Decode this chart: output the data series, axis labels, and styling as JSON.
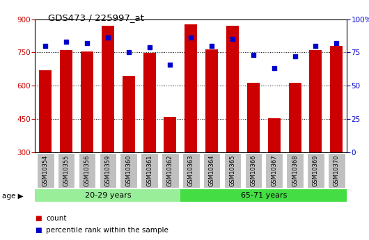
{
  "title": "GDS473 / 225997_at",
  "samples": [
    "GSM10354",
    "GSM10355",
    "GSM10356",
    "GSM10359",
    "GSM10360",
    "GSM10361",
    "GSM10362",
    "GSM10363",
    "GSM10364",
    "GSM10365",
    "GSM10366",
    "GSM10367",
    "GSM10368",
    "GSM10369",
    "GSM10370"
  ],
  "counts": [
    670,
    760,
    755,
    870,
    645,
    748,
    460,
    878,
    764,
    870,
    615,
    453,
    615,
    760,
    780
  ],
  "percentile_ranks": [
    80,
    83,
    82,
    86,
    75,
    79,
    66,
    86,
    80,
    85,
    73,
    63,
    72,
    80,
    82
  ],
  "group1_label": "20-29 years",
  "group2_label": "65-71 years",
  "group1_count": 7,
  "ylim_left": [
    300,
    900
  ],
  "ylim_right": [
    0,
    100
  ],
  "yticks_left": [
    300,
    450,
    600,
    750,
    900
  ],
  "yticks_right": [
    0,
    25,
    50,
    75,
    100
  ],
  "bar_color": "#cc0000",
  "dot_color": "#0000cc",
  "bar_width": 0.6,
  "legend_count_label": "count",
  "legend_pct_label": "percentile rank within the sample",
  "grid_color": "#000000",
  "left_tick_color": "#cc0000",
  "right_tick_color": "#0000cc",
  "group1_bg": "#99ee99",
  "group2_bg": "#44dd44",
  "axis_bg": "#ffffff",
  "tick_bg": "#c0c0c0"
}
